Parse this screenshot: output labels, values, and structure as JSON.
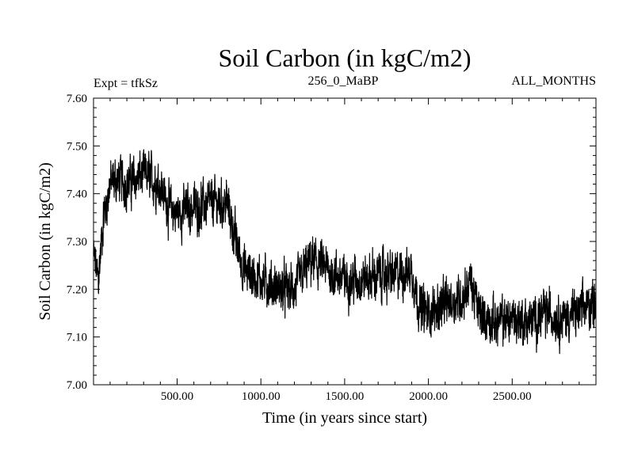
{
  "chart_data": {
    "type": "line",
    "title": "Soil Carbon (in kgC/m2)",
    "subtitle_left": "Expt = tfkSz",
    "subtitle_center": "256_0_MaBP",
    "subtitle_right": "ALL_MONTHS",
    "xlabel": "Time (in years since start)",
    "ylabel": "Soil Carbon (in kgC/m2)",
    "xlim": [
      1,
      3000
    ],
    "ylim": [
      7.0,
      7.6
    ],
    "x_ticks": [
      500,
      1000,
      1500,
      2000,
      2500
    ],
    "x_tick_labels": [
      "500.00",
      "1000.00",
      "1500.00",
      "2000.00",
      "2500.00"
    ],
    "y_ticks": [
      7.0,
      7.1,
      7.2,
      7.3,
      7.4,
      7.5,
      7.6
    ],
    "y_tick_labels": [
      "7.00",
      "7.10",
      "7.20",
      "7.30",
      "7.40",
      "7.50",
      "7.60"
    ],
    "series": [
      {
        "name": "Soil Carbon",
        "color": "#000000",
        "trend_x": [
          1,
          30,
          60,
          100,
          150,
          200,
          300,
          400,
          450,
          500,
          600,
          700,
          800,
          850,
          900,
          1000,
          1100,
          1200,
          1300,
          1400,
          1500,
          1600,
          1700,
          1800,
          1900,
          1950,
          2000,
          2100,
          2200,
          2250,
          2300,
          2400,
          2500,
          2600,
          2700,
          2800,
          2900,
          3000
        ],
        "trend_y": [
          7.27,
          7.22,
          7.35,
          7.42,
          7.43,
          7.42,
          7.44,
          7.42,
          7.37,
          7.36,
          7.37,
          7.38,
          7.38,
          7.3,
          7.24,
          7.22,
          7.2,
          7.2,
          7.26,
          7.24,
          7.22,
          7.22,
          7.23,
          7.23,
          7.24,
          7.16,
          7.15,
          7.17,
          7.18,
          7.22,
          7.15,
          7.13,
          7.14,
          7.13,
          7.15,
          7.14,
          7.15,
          7.18
        ],
        "noise_amplitude": 0.04,
        "n_points": 3000
      }
    ]
  }
}
